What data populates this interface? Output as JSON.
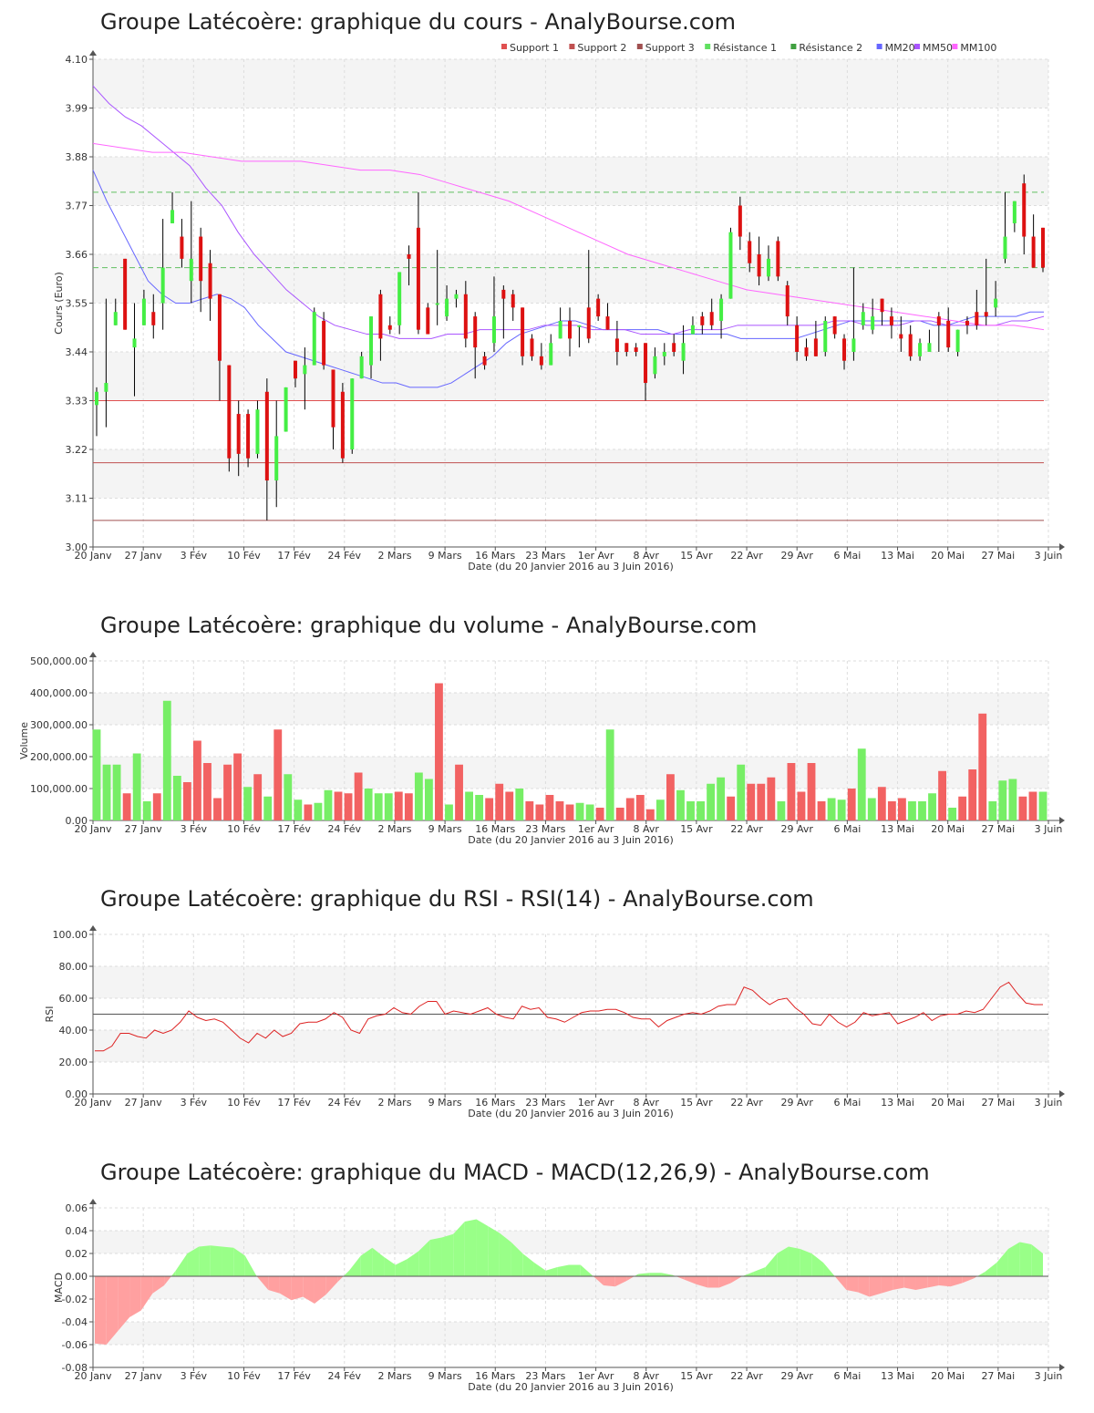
{
  "charts": {
    "price": {
      "title": "Groupe Latécoère: graphique du cours - AnalyBourse.com"
    },
    "volume": {
      "title": "Groupe Latécoère: graphique du volume - AnalyBourse.com"
    },
    "rsi": {
      "title": "Groupe Latécoère: graphique du RSI - RSI(14) - AnalyBourse.com"
    },
    "macd": {
      "title": "Groupe Latécoère: graphique du MACD - MACD(12,26,9) - AnalyBourse.com"
    }
  },
  "chart_data": [
    {
      "type": "candlestick",
      "title": "Groupe Latécoère: graphique du cours - AnalyBourse.com",
      "xlabel": "Date (du 20 Janvier 2016 au 3 Juin 2016)",
      "ylabel": "Cours (Euro)",
      "ylim": [
        3.0,
        4.1
      ],
      "yticks": [
        "3.00",
        "3.11",
        "3.22",
        "3.33",
        "3.44",
        "3.55",
        "3.66",
        "3.77",
        "3.88",
        "3.99",
        "4.10"
      ],
      "xticks": [
        "20 Janv",
        "27 Janv",
        "3 Fév",
        "10 Fév",
        "17 Fév",
        "24 Fév",
        "2 Mars",
        "9 Mars",
        "16 Mars",
        "23 Mars",
        "1er Avr",
        "8 Avr",
        "15 Avr",
        "22 Avr",
        "29 Avr",
        "6 Mai",
        "13 Mai",
        "20 Mai",
        "27 Mai",
        "3 Juin"
      ],
      "legend": [
        "Support 1",
        "Support 2",
        "Support 3",
        "Résistance 1",
        "Résistance 2",
        "MM20",
        "MM50",
        "MM100"
      ],
      "legend_colors": [
        "#e05050",
        "#c05050",
        "#a05050",
        "#60e060",
        "#40a040",
        "#6666ff",
        "#aa55ff",
        "#ff66ff"
      ],
      "levels": {
        "support1": 3.33,
        "support2": 3.19,
        "support3": 3.06,
        "resistance1": 3.8,
        "resistance2": 3.63
      },
      "candles": [
        [
          3.32,
          3.35,
          3.25,
          3.36
        ],
        [
          3.35,
          3.37,
          3.27,
          3.56
        ],
        [
          3.5,
          3.53,
          3.5,
          3.56
        ],
        [
          3.65,
          3.49,
          3.49,
          3.65
        ],
        [
          3.45,
          3.47,
          3.34,
          3.55
        ],
        [
          3.5,
          3.56,
          3.5,
          3.58
        ],
        [
          3.53,
          3.5,
          3.47,
          3.57
        ],
        [
          3.55,
          3.63,
          3.49,
          3.74
        ],
        [
          3.73,
          3.76,
          3.73,
          3.8
        ],
        [
          3.7,
          3.65,
          3.63,
          3.74
        ],
        [
          3.6,
          3.65,
          3.55,
          3.78
        ],
        [
          3.7,
          3.6,
          3.53,
          3.72
        ],
        [
          3.64,
          3.56,
          3.51,
          3.67
        ],
        [
          3.57,
          3.42,
          3.33,
          3.57
        ],
        [
          3.41,
          3.2,
          3.17,
          3.41
        ],
        [
          3.3,
          3.21,
          3.16,
          3.33
        ],
        [
          3.3,
          3.2,
          3.18,
          3.31
        ],
        [
          3.21,
          3.31,
          3.2,
          3.33
        ],
        [
          3.35,
          3.15,
          3.06,
          3.38
        ],
        [
          3.15,
          3.25,
          3.09,
          3.33
        ],
        [
          3.26,
          3.36,
          3.26,
          3.36
        ],
        [
          3.42,
          3.38,
          3.36,
          3.42
        ],
        [
          3.39,
          3.41,
          3.31,
          3.45
        ],
        [
          3.41,
          3.53,
          3.41,
          3.54
        ],
        [
          3.51,
          3.41,
          3.4,
          3.53
        ],
        [
          3.4,
          3.27,
          3.22,
          3.4
        ],
        [
          3.35,
          3.2,
          3.19,
          3.37
        ],
        [
          3.22,
          3.38,
          3.21,
          3.38
        ],
        [
          3.38,
          3.43,
          3.38,
          3.44
        ],
        [
          3.41,
          3.52,
          3.38,
          3.52
        ],
        [
          3.57,
          3.47,
          3.42,
          3.58
        ],
        [
          3.5,
          3.49,
          3.48,
          3.52
        ],
        [
          3.5,
          3.62,
          3.48,
          3.62
        ],
        [
          3.66,
          3.65,
          3.59,
          3.68
        ],
        [
          3.72,
          3.49,
          3.48,
          3.8
        ],
        [
          3.54,
          3.48,
          3.48,
          3.55
        ],
        [
          3.55,
          3.55,
          3.5,
          3.67
        ],
        [
          3.52,
          3.56,
          3.51,
          3.59
        ],
        [
          3.56,
          3.57,
          3.54,
          3.58
        ],
        [
          3.57,
          3.47,
          3.45,
          3.6
        ],
        [
          3.52,
          3.45,
          3.38,
          3.53
        ],
        [
          3.43,
          3.41,
          3.4,
          3.44
        ],
        [
          3.46,
          3.52,
          3.44,
          3.61
        ],
        [
          3.58,
          3.56,
          3.47,
          3.59
        ],
        [
          3.57,
          3.54,
          3.51,
          3.58
        ],
        [
          3.54,
          3.43,
          3.41,
          3.54
        ],
        [
          3.47,
          3.43,
          3.42,
          3.48
        ],
        [
          3.43,
          3.41,
          3.4,
          3.46
        ],
        [
          3.41,
          3.46,
          3.41,
          3.48
        ],
        [
          3.47,
          3.51,
          3.47,
          3.54
        ],
        [
          3.51,
          3.47,
          3.43,
          3.54
        ],
        [
          3.5,
          3.5,
          3.45,
          3.5
        ],
        [
          3.54,
          3.47,
          3.46,
          3.67
        ],
        [
          3.56,
          3.52,
          3.51,
          3.57
        ],
        [
          3.52,
          3.49,
          3.49,
          3.55
        ],
        [
          3.47,
          3.44,
          3.41,
          3.51
        ],
        [
          3.46,
          3.44,
          3.43,
          3.46
        ],
        [
          3.45,
          3.44,
          3.43,
          3.46
        ],
        [
          3.46,
          3.37,
          3.33,
          3.46
        ],
        [
          3.39,
          3.43,
          3.38,
          3.45
        ],
        [
          3.43,
          3.44,
          3.41,
          3.46
        ],
        [
          3.46,
          3.44,
          3.43,
          3.48
        ],
        [
          3.42,
          3.46,
          3.39,
          3.5
        ],
        [
          3.48,
          3.5,
          3.48,
          3.52
        ],
        [
          3.52,
          3.5,
          3.48,
          3.53
        ],
        [
          3.53,
          3.5,
          3.49,
          3.56
        ],
        [
          3.51,
          3.56,
          3.47,
          3.57
        ],
        [
          3.56,
          3.71,
          3.56,
          3.72
        ],
        [
          3.77,
          3.7,
          3.67,
          3.79
        ],
        [
          3.69,
          3.64,
          3.62,
          3.71
        ],
        [
          3.66,
          3.61,
          3.59,
          3.7
        ],
        [
          3.61,
          3.65,
          3.6,
          3.68
        ],
        [
          3.69,
          3.61,
          3.6,
          3.7
        ],
        [
          3.59,
          3.52,
          3.5,
          3.6
        ],
        [
          3.5,
          3.44,
          3.42,
          3.52
        ],
        [
          3.45,
          3.43,
          3.42,
          3.47
        ],
        [
          3.47,
          3.43,
          3.43,
          3.51
        ],
        [
          3.44,
          3.51,
          3.43,
          3.52
        ],
        [
          3.52,
          3.48,
          3.47,
          3.52
        ],
        [
          3.47,
          3.42,
          3.4,
          3.48
        ],
        [
          3.44,
          3.47,
          3.42,
          3.63
        ],
        [
          3.5,
          3.53,
          3.49,
          3.55
        ],
        [
          3.49,
          3.52,
          3.48,
          3.56
        ],
        [
          3.56,
          3.53,
          3.5,
          3.56
        ],
        [
          3.52,
          3.5,
          3.47,
          3.54
        ],
        [
          3.48,
          3.47,
          3.44,
          3.52
        ],
        [
          3.48,
          3.43,
          3.42,
          3.5
        ],
        [
          3.43,
          3.46,
          3.42,
          3.47
        ],
        [
          3.44,
          3.46,
          3.44,
          3.49
        ],
        [
          3.52,
          3.5,
          3.44,
          3.53
        ],
        [
          3.51,
          3.45,
          3.44,
          3.54
        ],
        [
          3.44,
          3.49,
          3.43,
          3.49
        ],
        [
          3.51,
          3.5,
          3.48,
          3.52
        ],
        [
          3.53,
          3.5,
          3.49,
          3.58
        ],
        [
          3.53,
          3.52,
          3.5,
          3.65
        ],
        [
          3.54,
          3.56,
          3.52,
          3.6
        ],
        [
          3.65,
          3.7,
          3.64,
          3.8
        ],
        [
          3.73,
          3.78,
          3.71,
          3.78
        ],
        [
          3.82,
          3.7,
          3.66,
          3.84
        ],
        [
          3.7,
          3.63,
          3.63,
          3.75
        ],
        [
          3.72,
          3.63,
          3.62,
          3.72
        ]
      ],
      "ma20": [
        3.85,
        3.78,
        3.72,
        3.66,
        3.6,
        3.57,
        3.55,
        3.55,
        3.56,
        3.57,
        3.56,
        3.54,
        3.5,
        3.47,
        3.44,
        3.43,
        3.42,
        3.41,
        3.4,
        3.39,
        3.38,
        3.37,
        3.37,
        3.36,
        3.36,
        3.36,
        3.37,
        3.39,
        3.41,
        3.43,
        3.46,
        3.48,
        3.49,
        3.5,
        3.51,
        3.51,
        3.5,
        3.49,
        3.49,
        3.49,
        3.49,
        3.49,
        3.48,
        3.48,
        3.48,
        3.48,
        3.48,
        3.47,
        3.47,
        3.47,
        3.47,
        3.47,
        3.48,
        3.49,
        3.5,
        3.51,
        3.51,
        3.51,
        3.51,
        3.51,
        3.51,
        3.5,
        3.5,
        3.51,
        3.52,
        3.52,
        3.52,
        3.52,
        3.53,
        3.53
      ],
      "ma50": [
        4.04,
        4.0,
        3.97,
        3.95,
        3.92,
        3.89,
        3.86,
        3.81,
        3.77,
        3.71,
        3.66,
        3.62,
        3.58,
        3.55,
        3.52,
        3.5,
        3.49,
        3.48,
        3.48,
        3.47,
        3.47,
        3.47,
        3.48,
        3.48,
        3.49,
        3.49,
        3.49,
        3.49,
        3.5,
        3.5,
        3.5,
        3.49,
        3.49,
        3.49,
        3.48,
        3.48,
        3.48,
        3.49,
        3.49,
        3.49,
        3.5,
        3.5,
        3.5,
        3.5,
        3.5,
        3.5,
        3.51,
        3.51,
        3.5,
        3.5,
        3.5,
        3.51,
        3.51,
        3.5,
        3.5,
        3.5,
        3.5,
        3.51,
        3.51,
        3.52
      ],
      "ma100": [
        3.91,
        3.9,
        3.89,
        3.89,
        3.88,
        3.87,
        3.87,
        3.87,
        3.86,
        3.85,
        3.85,
        3.84,
        3.82,
        3.8,
        3.78,
        3.75,
        3.72,
        3.69,
        3.66,
        3.64,
        3.62,
        3.6,
        3.58,
        3.57,
        3.56,
        3.55,
        3.54,
        3.53,
        3.52,
        3.51,
        3.5,
        3.5,
        3.49
      ]
    },
    {
      "type": "bar",
      "title": "Groupe Latécoère: graphique du volume - AnalyBourse.com",
      "xlabel": "Date (du 20 Janvier 2016 au 3 Juin 2016)",
      "ylabel": "Volume",
      "ylim": [
        0,
        500000
      ],
      "yticks": [
        "0.00",
        "100,000.00",
        "200,000.00",
        "300,000.00",
        "400,000.00",
        "500,000.00"
      ],
      "values": [
        285000,
        175000,
        175000,
        85000,
        210000,
        60000,
        85000,
        375000,
        140000,
        120000,
        250000,
        180000,
        70000,
        175000,
        210000,
        105000,
        145000,
        75000,
        285000,
        145000,
        65000,
        50000,
        55000,
        95000,
        90000,
        85000,
        150000,
        100000,
        85000,
        85000,
        90000,
        85000,
        150000,
        130000,
        430000,
        50000,
        175000,
        90000,
        80000,
        70000,
        115000,
        90000,
        100000,
        60000,
        50000,
        80000,
        60000,
        50000,
        55000,
        50000,
        40000,
        285000,
        40000,
        70000,
        80000,
        35000,
        65000,
        145000,
        95000,
        60000,
        60000,
        115000,
        135000,
        75000,
        175000,
        115000,
        115000,
        135000,
        60000,
        180000,
        90000,
        180000,
        60000,
        70000,
        65000,
        100000,
        225000,
        70000,
        105000,
        60000,
        70000,
        60000,
        60000,
        85000,
        155000,
        40000,
        75000,
        160000,
        335000,
        60000,
        125000,
        130000,
        75000,
        90000,
        90000
      ],
      "up": [
        1,
        1,
        1,
        0,
        1,
        1,
        0,
        1,
        1,
        0,
        0,
        0,
        0,
        0,
        0,
        1,
        0,
        1,
        0,
        1,
        1,
        0,
        1,
        1,
        0,
        0,
        0,
        1,
        1,
        1,
        0,
        0,
        1,
        1,
        0,
        1,
        0,
        1,
        1,
        0,
        0,
        0,
        1,
        0,
        0,
        0,
        0,
        0,
        1,
        1,
        0,
        1,
        0,
        0,
        0,
        0,
        1,
        0,
        1,
        1,
        1,
        1,
        1,
        0,
        1,
        0,
        0,
        0,
        1,
        0,
        0,
        0,
        0,
        1,
        1,
        0,
        1,
        1,
        0,
        0,
        0,
        1,
        1,
        1,
        0,
        1,
        0,
        0,
        0,
        1,
        1,
        1,
        0,
        0,
        1
      ]
    },
    {
      "type": "line",
      "title": "Groupe Latécoère: graphique du RSI - RSI(14) - AnalyBourse.com",
      "xlabel": "Date (du 20 Janvier 2016 au 3 Juin 2016)",
      "ylabel": "RSI",
      "ylim": [
        0,
        100
      ],
      "yticks": [
        "0.00",
        "20.00",
        "40.00",
        "60.00",
        "80.00",
        "100.00"
      ],
      "reference": 50,
      "values": [
        27,
        27,
        30,
        38,
        38,
        36,
        35,
        40,
        38,
        40,
        45,
        52,
        48,
        46,
        47,
        45,
        40,
        35,
        32,
        38,
        35,
        40,
        36,
        38,
        44,
        45,
        45,
        47,
        51,
        48,
        40,
        38,
        47,
        49,
        50,
        54,
        51,
        50,
        55,
        58,
        58,
        50,
        52,
        51,
        50,
        52,
        54,
        50,
        48,
        47,
        55,
        53,
        54,
        48,
        47,
        45,
        48,
        51,
        52,
        52,
        53,
        53,
        51,
        48,
        47,
        47,
        42,
        46,
        48,
        50,
        51,
        50,
        52,
        55,
        56,
        56,
        67,
        65,
        60,
        56,
        59,
        60,
        54,
        50,
        44,
        43,
        50,
        45,
        42,
        45,
        51,
        49,
        50,
        51,
        44,
        46,
        48,
        51,
        46,
        49,
        50,
        50,
        52,
        51,
        53,
        60,
        67,
        70,
        63,
        57,
        56,
        56
      ]
    },
    {
      "type": "area",
      "title": "Groupe Latécoère: graphique du MACD - MACD(12,26,9) - AnalyBourse.com",
      "xlabel": "Date (du 20 Janvier 2016 au 3 Juin 2016)",
      "ylabel": "MACD",
      "ylim": [
        -0.08,
        0.06
      ],
      "yticks": [
        "-0.08",
        "-0.06",
        "-0.04",
        "-0.02",
        "0.00",
        "0.02",
        "0.04",
        "0.06"
      ],
      "values": [
        -0.059,
        -0.06,
        -0.048,
        -0.036,
        -0.03,
        -0.015,
        -0.008,
        0.005,
        0.02,
        0.026,
        0.027,
        0.026,
        0.025,
        0.018,
        0.0,
        -0.012,
        -0.015,
        -0.021,
        -0.018,
        -0.024,
        -0.016,
        -0.005,
        0.005,
        0.018,
        0.025,
        0.017,
        0.01,
        0.015,
        0.022,
        0.032,
        0.034,
        0.037,
        0.048,
        0.05,
        0.044,
        0.038,
        0.03,
        0.02,
        0.012,
        0.005,
        0.008,
        0.01,
        0.01,
        0.001,
        -0.008,
        -0.009,
        -0.004,
        0.002,
        0.003,
        0.003,
        0.001,
        -0.003,
        -0.007,
        -0.01,
        -0.01,
        -0.006,
        0.0,
        0.004,
        0.008,
        0.02,
        0.026,
        0.024,
        0.02,
        0.012,
        0.0,
        -0.012,
        -0.014,
        -0.018,
        -0.015,
        -0.012,
        -0.01,
        -0.012,
        -0.01,
        -0.008,
        -0.009,
        -0.006,
        -0.002,
        0.004,
        0.012,
        0.024,
        0.03,
        0.028,
        0.02
      ]
    }
  ]
}
